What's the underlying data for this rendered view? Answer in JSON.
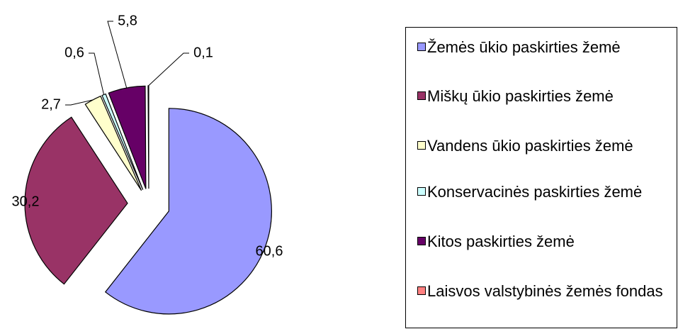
{
  "chart_data": {
    "type": "pie",
    "categories": [
      "Žemės ūkio paskirties žemė",
      "Miškų ūkio paskirties žemė",
      "Vandens ūkio paskirties žemė",
      "Konservacinės paskirties žemė",
      "Kitos paskirties žemė",
      "Laisvos valstybinės žemės fondas"
    ],
    "values": [
      60.6,
      30.2,
      2.7,
      0.6,
      5.8,
      0.1
    ],
    "value_labels": [
      "60,6",
      "30,2",
      "2,7",
      "0,6",
      "5,8",
      "0,1"
    ],
    "colors": [
      "#9999ff",
      "#993366",
      "#ffffcc",
      "#ccffff",
      "#660066",
      "#ff8080"
    ],
    "legend": "right"
  }
}
